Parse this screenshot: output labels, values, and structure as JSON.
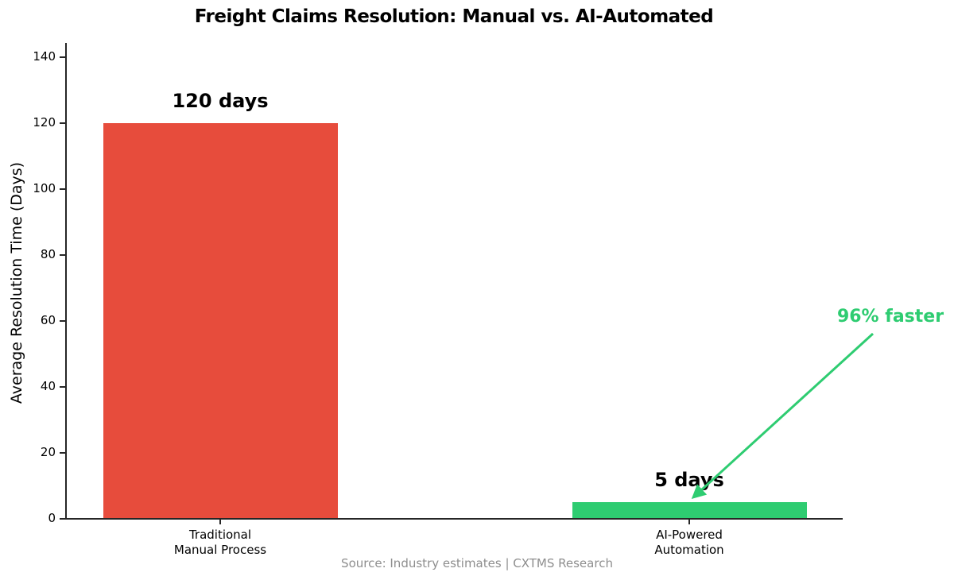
{
  "chart_data": {
    "type": "bar",
    "title": "Freight Claims Resolution: Manual vs. AI-Automated",
    "xlabel": "",
    "ylabel": "Average Resolution Time (Days)",
    "categories": [
      [
        "Traditional",
        "Manual Process"
      ],
      [
        "AI-Powered",
        "Automation"
      ]
    ],
    "values": [
      120,
      5
    ],
    "bar_labels": [
      "120 days",
      "5 days"
    ],
    "bar_colors": [
      "#e74c3c",
      "#2ecc71"
    ],
    "yticks": [
      0,
      20,
      40,
      60,
      80,
      100,
      120,
      140
    ],
    "ylim": [
      0,
      140
    ],
    "grid": false,
    "legend": null,
    "annotation": {
      "text": "96% faster",
      "color": "#2ecc71"
    },
    "source": "Source: Industry estimates | CXTMS Research"
  }
}
